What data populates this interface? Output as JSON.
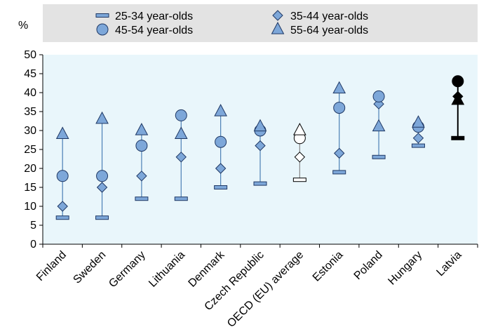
{
  "chart_data": {
    "type": "scatter",
    "ylabel": "%",
    "ylim": [
      0,
      50
    ],
    "yticks": [
      0,
      5,
      10,
      15,
      20,
      25,
      30,
      35,
      40,
      45,
      50
    ],
    "categories": [
      "Finland",
      "Sweden",
      "Germany",
      "Lithuania",
      "Denmark",
      "Czech Republic",
      "OECD (EU) average",
      "Estonia",
      "Poland",
      "Hungary",
      "Latvia"
    ],
    "highlight": {
      "OECD (EU) average": "hollow",
      "Latvia": "dark"
    },
    "series": [
      {
        "name": "25-34 year-olds",
        "marker": "dash",
        "values": [
          7,
          7,
          12,
          12,
          15,
          16,
          17,
          19,
          23,
          26,
          28
        ]
      },
      {
        "name": "35-44 year-olds",
        "marker": "diamond",
        "values": [
          10,
          15,
          18,
          23,
          20,
          26,
          23,
          24,
          37,
          28,
          39
        ]
      },
      {
        "name": "45-54 year-olds",
        "marker": "circle",
        "values": [
          18,
          18,
          26,
          34,
          27,
          30,
          28,
          36,
          39,
          31,
          43
        ]
      },
      {
        "name": "55-64 year-olds",
        "marker": "triangle",
        "values": [
          29,
          33,
          30,
          29,
          35,
          31,
          30,
          41,
          31,
          32,
          38
        ]
      }
    ],
    "legend": {
      "position": "top"
    },
    "grid": false,
    "colors": {
      "marker_fill": "#7da7d9",
      "marker_stroke": "#1f3864",
      "range_line": "#4a7fb5",
      "plot_bg": "#e9f6fb",
      "legend_bg": "#e3e3e3",
      "dark": "#000000",
      "hollow": "#ffffff"
    }
  }
}
